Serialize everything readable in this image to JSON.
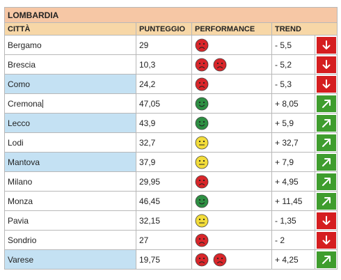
{
  "table": {
    "region": "LOMBARDIA",
    "headers": {
      "city": "CITTÀ",
      "score": "PUNTEGGIO",
      "performance": "PERFORMANCE",
      "trend": "TREND"
    },
    "rows": [
      {
        "city": "Bergamo",
        "score": "29",
        "faces": [
          "sad"
        ],
        "trend": "- 5,5",
        "arrow": "down",
        "highlight": false
      },
      {
        "city": "Brescia",
        "score": "10,3",
        "faces": [
          "sad",
          "sad"
        ],
        "trend": "- 5,2",
        "arrow": "down",
        "highlight": false
      },
      {
        "city": "Como",
        "score": "24,2",
        "faces": [
          "sad"
        ],
        "trend": "- 5,3",
        "arrow": "down",
        "highlight": true
      },
      {
        "city": "Cremona",
        "score": "47,05",
        "faces": [
          "happy"
        ],
        "trend": "+ 8,05",
        "arrow": "up",
        "highlight": false
      },
      {
        "city": "Lecco",
        "score": "43,9",
        "faces": [
          "happy"
        ],
        "trend": "+ 5,9",
        "arrow": "up",
        "highlight": true
      },
      {
        "city": "Lodi",
        "score": "32,7",
        "faces": [
          "neutral"
        ],
        "trend": "+ 32,7",
        "arrow": "up",
        "highlight": false
      },
      {
        "city": "Mantova",
        "score": "37,9",
        "faces": [
          "neutral"
        ],
        "trend": "+ 7,9",
        "arrow": "up",
        "highlight": true
      },
      {
        "city": "Milano",
        "score": "29,95",
        "faces": [
          "sad"
        ],
        "trend": "+ 4,95",
        "arrow": "up",
        "highlight": false
      },
      {
        "city": "Monza",
        "score": "46,45",
        "faces": [
          "happy"
        ],
        "trend": "+ 11,45",
        "arrow": "up",
        "highlight": false
      },
      {
        "city": "Pavia",
        "score": "32,15",
        "faces": [
          "neutral"
        ],
        "trend": "- 1,35",
        "arrow": "down",
        "highlight": false
      },
      {
        "city": "Sondrio",
        "score": "27",
        "faces": [
          "sad"
        ],
        "trend": "- 2",
        "arrow": "down",
        "highlight": false
      },
      {
        "city": "Varese",
        "score": "19,75",
        "faces": [
          "sad",
          "sad"
        ],
        "trend": "+ 4,25",
        "arrow": "up",
        "highlight": true
      }
    ]
  },
  "colors": {
    "title_bg": "#f6c7a5",
    "header_bg": "#f7d7a7",
    "highlight_bg": "#c4e1f3",
    "down_arrow": "#d51e20",
    "up_arrow": "#3f9d2e",
    "face_sad": "#d9262a",
    "face_happy": "#2e8f43",
    "face_neutral": "#f2dc3a"
  },
  "icons": {
    "face_sad": "sad-face-icon",
    "face_happy": "happy-face-icon",
    "face_neutral": "neutral-face-icon",
    "arrow_down": "arrow-down-icon",
    "arrow_up": "arrow-up-right-icon"
  }
}
